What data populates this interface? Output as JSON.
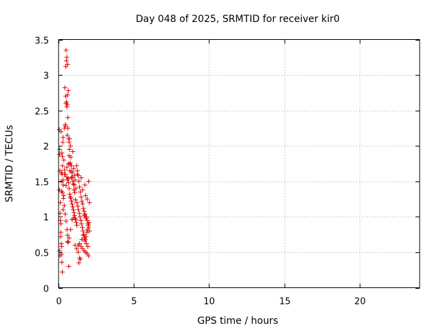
{
  "chart_data": {
    "type": "scatter",
    "title": "Day 048 of 2025, SRMTID for receiver kir0",
    "xlabel": "GPS time / hours",
    "ylabel": "SRMTID / TECUs",
    "xlim": [
      0,
      24
    ],
    "ylim": [
      0,
      3.5
    ],
    "xticks": [
      0,
      5,
      10,
      15,
      20
    ],
    "yticks": [
      0,
      0.5,
      1,
      1.5,
      2,
      2.5,
      3,
      3.5
    ],
    "xtick_labels": [
      "0",
      "5",
      "10",
      "15",
      "20"
    ],
    "ytick_labels": [
      "0",
      "0.5",
      "1",
      "1.5",
      "2",
      "2.5",
      "3",
      "3.5"
    ],
    "grid": true,
    "marker": "plus",
    "color": "#dd0000",
    "series": [
      {
        "name": "SRMTID",
        "x": [
          0.05,
          0.08,
          0.1,
          0.12,
          0.15,
          0.18,
          0.2,
          0.22,
          0.25,
          0.28,
          0.3,
          0.05,
          0.1,
          0.15,
          0.2,
          0.25,
          0.3,
          0.12,
          0.18,
          0.22,
          0.08,
          0.14,
          0.2,
          0.26,
          0.06,
          0.16,
          0.24,
          0.1,
          0.3,
          0.35,
          0.4,
          0.45,
          0.5,
          0.55,
          0.6,
          0.65,
          0.7,
          0.75,
          0.8,
          0.85,
          0.9,
          0.95,
          1.0,
          1.05,
          1.1,
          0.42,
          0.48,
          0.52,
          0.58,
          0.62,
          0.68,
          0.72,
          0.78,
          0.82,
          0.88,
          0.92,
          0.98,
          1.02,
          1.08,
          1.12,
          0.5,
          0.52,
          0.55,
          0.48,
          0.6,
          0.62,
          0.7,
          0.72,
          0.45,
          0.58,
          0.64,
          0.4,
          0.5,
          0.55,
          0.6,
          0.66,
          0.7,
          0.74,
          0.78,
          0.82,
          0.86,
          0.9,
          0.94,
          0.98,
          1.02,
          1.06,
          1.1,
          1.14,
          1.18,
          1.22,
          1.2,
          1.25,
          1.3,
          1.35,
          1.4,
          1.45,
          1.5,
          1.55,
          1.6,
          1.65,
          1.7,
          1.75,
          1.8,
          1.85,
          1.9,
          1.95,
          2.0,
          2.05,
          1.22,
          1.28,
          1.32,
          1.38,
          1.42,
          1.48,
          1.52,
          1.58,
          1.62,
          1.68,
          1.72,
          1.78,
          1.82,
          1.88,
          1.92,
          1.98,
          2.02,
          1.3,
          1.4,
          1.5,
          1.6,
          1.7,
          1.8,
          1.9,
          2.0,
          1.35,
          1.45,
          1.55,
          1.65,
          1.75,
          1.85,
          1.95,
          1.25,
          1.5,
          1.75,
          2.0,
          1.6,
          1.8,
          1.9,
          2.05,
          1.7,
          1.85,
          0.3,
          0.35,
          0.4,
          0.45,
          0.55,
          0.65,
          0.75,
          0.85,
          0.95,
          1.05,
          1.15,
          1.0,
          0.9,
          0.8,
          0.7,
          0.6,
          1.1,
          1.2,
          1.3,
          1.4,
          0.2,
          0.25,
          0.32,
          0.38,
          0.44,
          0.5,
          0.56,
          0.6,
          0.64,
          0.68
        ],
        "y": [
          2.23,
          1.95,
          1.65,
          1.2,
          0.9,
          0.62,
          0.47,
          0.36,
          1.85,
          2.05,
          2.12,
          1.38,
          1.05,
          0.78,
          0.58,
          0.22,
          1.1,
          0.95,
          1.5,
          1.9,
          0.52,
          0.72,
          1.62,
          1.72,
          1.88,
          2.2,
          1.6,
          0.45,
          1.45,
          1.3,
          2.25,
          2.3,
          2.6,
          2.55,
          2.72,
          2.78,
          1.86,
          1.74,
          2.0,
          1.72,
          1.62,
          1.92,
          1.68,
          1.58,
          1.52,
          2.82,
          2.7,
          2.62,
          2.58,
          2.4,
          2.1,
          1.95,
          1.76,
          1.84,
          1.64,
          1.56,
          1.46,
          1.38,
          1.34,
          1.24,
          3.35,
          3.2,
          3.25,
          3.12,
          3.15,
          2.25,
          2.05,
          2.1,
          2.28,
          2.15,
          1.54,
          1.6,
          1.44,
          1.56,
          1.52,
          1.48,
          1.4,
          1.32,
          1.28,
          1.26,
          1.22,
          1.18,
          1.14,
          1.1,
          1.06,
          1.02,
          0.98,
          0.96,
          0.92,
          0.88,
          1.72,
          1.65,
          1.58,
          1.5,
          1.42,
          1.35,
          1.28,
          1.22,
          1.18,
          1.12,
          1.08,
          1.04,
          1.0,
          0.98,
          0.95,
          0.9,
          0.85,
          0.8,
          1.2,
          1.15,
          1.1,
          1.05,
          1.0,
          0.95,
          0.9,
          0.85,
          0.8,
          0.75,
          0.7,
          0.68,
          0.72,
          0.78,
          0.82,
          0.88,
          0.92,
          0.6,
          0.62,
          0.58,
          0.55,
          0.52,
          0.5,
          0.48,
          0.45,
          0.35,
          0.4,
          0.68,
          0.74,
          0.66,
          0.62,
          0.58,
          1.6,
          1.55,
          1.45,
          1.5,
          1.38,
          1.3,
          1.25,
          1.2,
          1.02,
          1.0,
          1.52,
          1.8,
          1.66,
          1.6,
          1.7,
          1.75,
          1.65,
          1.55,
          1.5,
          1.45,
          1.4,
          0.98,
          0.96,
          0.82,
          0.7,
          0.65,
          0.6,
          0.55,
          0.5,
          0.42,
          1.36,
          1.34,
          1.26,
          1.16,
          1.04,
          0.94,
          0.82,
          0.74,
          0.64,
          0.3
        ]
      }
    ]
  }
}
